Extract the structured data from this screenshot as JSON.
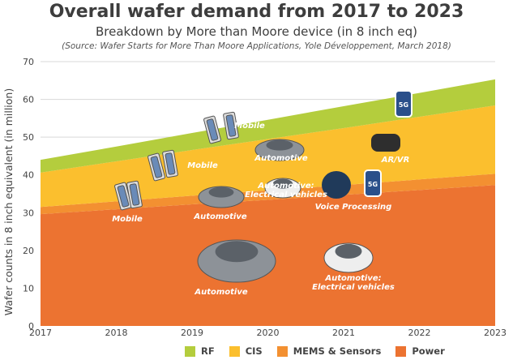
{
  "chart_data": {
    "type": "area",
    "stacked": true,
    "title": "Overall wafer demand from 2017 to 2023",
    "subtitle": "Breakdown by More than Moore device (in 8 inch eq)",
    "source": "(Source: Wafer Starts for More Than Moore Applications, Yole Développement, March 2018)",
    "xlabel": "",
    "ylabel": "Wafer counts in 8 inch equivalent (in million)",
    "x": [
      "2017",
      "2018",
      "2019",
      "2020",
      "2021",
      "2022",
      "2023"
    ],
    "ylim": [
      0,
      70
    ],
    "yticks": [
      "0",
      "10",
      "20",
      "30",
      "40",
      "50",
      "60",
      "70"
    ],
    "grid": true,
    "legend_position": "bottom",
    "series": [
      {
        "name": "Power",
        "color": "#ec7331",
        "values": [
          29.6,
          30.9,
          32.2,
          33.4,
          34.7,
          36.0,
          37.3
        ]
      },
      {
        "name": "MEMS & Sensors",
        "color": "#f39031",
        "values": [
          1.9,
          2.1,
          2.3,
          2.5,
          2.6,
          2.8,
          3.0
        ]
      },
      {
        "name": "CIS",
        "color": "#fbbf2e",
        "values": [
          9.1,
          10.6,
          12.1,
          13.6,
          15.1,
          16.6,
          18.1
        ]
      },
      {
        "name": "RF",
        "color": "#b4cd3d",
        "values": [
          3.4,
          3.9,
          4.5,
          5.1,
          5.8,
          6.3,
          6.9
        ]
      }
    ],
    "annotations": [
      {
        "text": "Mobile",
        "icon": "smartphone"
      },
      {
        "text": "Mobile",
        "icon": "smartphone"
      },
      {
        "text": "Mobile",
        "icon": "smartphone"
      },
      {
        "text": "Automotive",
        "icon": "car"
      },
      {
        "text": "AR/VR",
        "icon": "vr-headset"
      },
      {
        "text": "Automotive",
        "icon": "car"
      },
      {
        "text": "Automotive:",
        "text2": "Electrical vehicles",
        "icon": "electric-car"
      },
      {
        "text": "Voice Processing",
        "icon": "voice-orb"
      },
      {
        "text": "Automotive",
        "icon": "car"
      },
      {
        "text": "Automotive:",
        "text2": "Electrical vehicles",
        "icon": "electric-car"
      },
      {
        "text": "",
        "icon": "5g-phone"
      },
      {
        "text": "",
        "icon": "5g-phone"
      }
    ],
    "icon_text": "5G"
  }
}
